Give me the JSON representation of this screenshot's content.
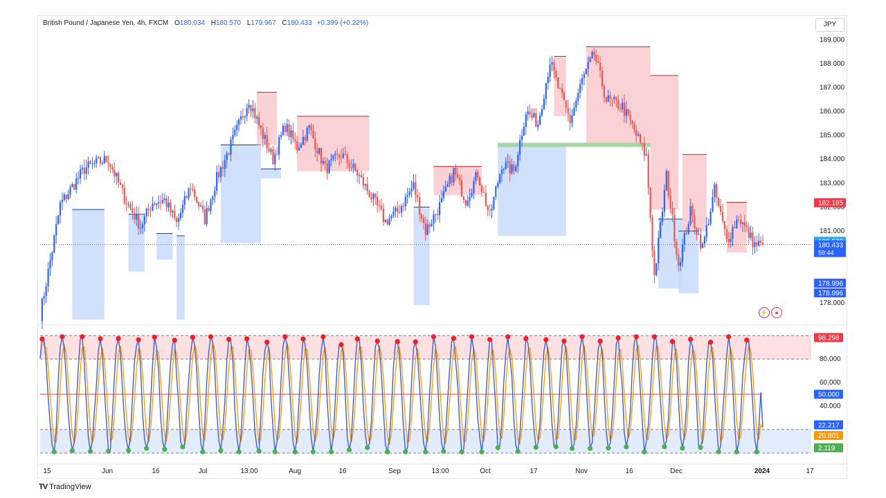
{
  "legend": {
    "symbol": "British Pound / Japanese Yen, 4h, FXCM",
    "open_label": "O",
    "open": "180.034",
    "high_label": "H",
    "high": "180.570",
    "low_label": "L",
    "low": "179.967",
    "close_label": "C",
    "close": "180.433",
    "change": "+0.399 (+0.22%)"
  },
  "currency_button": "JPY",
  "branding": "TradingView",
  "colors": {
    "bull": "#2962ff",
    "bear": "#ef5350",
    "blue_zone": "#c9dbfb",
    "red_zone": "#f9c9cc",
    "green_band": "#a5d6a7",
    "stoch_k": "#3f5fbf",
    "stoch_d": "#ff9800",
    "dot_high": "#f01d2c",
    "dot_low": "#4caf50",
    "overbought_fill": "#fde0e1",
    "oversold_fill": "#e3ecfd"
  },
  "chart_data": [
    {
      "type": "candlestick",
      "timeframe": "4h",
      "y_axis": {
        "ticks": [
          "178.000",
          "181.000",
          "182.000",
          "183.000",
          "184.000",
          "185.000",
          "186.000",
          "187.000",
          "188.000",
          "189.000"
        ],
        "ylim": [
          177.3,
          189.5
        ]
      },
      "x_axis": {
        "ticks": [
          "15",
          "Jun",
          "16",
          "Jul",
          "13:00",
          "Aug",
          "16",
          "Sep",
          "13:00",
          "Oct",
          "17",
          "Nov",
          "16",
          "Dec",
          "2024",
          "17"
        ]
      },
      "price_labels": [
        {
          "value": "182.185",
          "kind": "red"
        },
        {
          "value": "180.570",
          "kind": "high"
        },
        {
          "value": "180.433",
          "kind": "last",
          "countdown": "59:44"
        },
        {
          "value": "178.996",
          "kind": "blue"
        },
        {
          "value": "178.996",
          "kind": "blue"
        }
      ],
      "last_price": 180.433,
      "anchors": [
        [
          0,
          177.5
        ],
        [
          6,
          180.2
        ],
        [
          10,
          182.1
        ],
        [
          22,
          183.6
        ],
        [
          30,
          183.9
        ],
        [
          34,
          184.0
        ],
        [
          42,
          182.4
        ],
        [
          50,
          181.2
        ],
        [
          56,
          182.2
        ],
        [
          62,
          182.3
        ],
        [
          68,
          181.3
        ],
        [
          75,
          182.9
        ],
        [
          82,
          181.5
        ],
        [
          88,
          183.2
        ],
        [
          96,
          184.8
        ],
        [
          104,
          186.5
        ],
        [
          110,
          185.2
        ],
        [
          116,
          184.0
        ],
        [
          122,
          185.4
        ],
        [
          128,
          184.5
        ],
        [
          134,
          185.3
        ],
        [
          142,
          183.6
        ],
        [
          150,
          184.2
        ],
        [
          158,
          183.4
        ],
        [
          166,
          182.3
        ],
        [
          172,
          181.4
        ],
        [
          178,
          181.8
        ],
        [
          186,
          182.9
        ],
        [
          192,
          181.0
        ],
        [
          200,
          182.2
        ],
        [
          206,
          183.5
        ],
        [
          212,
          182.3
        ],
        [
          218,
          183.4
        ],
        [
          224,
          181.6
        ],
        [
          230,
          183.8
        ],
        [
          236,
          183.5
        ],
        [
          242,
          186.0
        ],
        [
          248,
          185.5
        ],
        [
          254,
          188.1
        ],
        [
          258,
          187.0
        ],
        [
          264,
          185.6
        ],
        [
          270,
          187.3
        ],
        [
          276,
          188.4
        ],
        [
          282,
          186.5
        ],
        [
          290,
          186.2
        ],
        [
          296,
          185.2
        ],
        [
          302,
          184.1
        ],
        [
          306,
          179.1
        ],
        [
          312,
          183.3
        ],
        [
          318,
          179.6
        ],
        [
          324,
          181.8
        ],
        [
          330,
          180.3
        ],
        [
          336,
          182.7
        ],
        [
          342,
          180.6
        ],
        [
          348,
          181.6
        ],
        [
          352,
          181.0
        ],
        [
          356,
          180.43
        ]
      ],
      "zones": [
        {
          "kind": "blue",
          "x0": 16,
          "x1": 32,
          "top": 181.9,
          "bottom": 177.3
        },
        {
          "kind": "blue",
          "x0": 44,
          "x1": 52,
          "top": 181.7,
          "bottom": 179.3
        },
        {
          "kind": "blue",
          "x0": 58,
          "x1": 66,
          "top": 180.9,
          "bottom": 179.8
        },
        {
          "kind": "blue",
          "x0": 68,
          "x1": 72,
          "top": 180.8,
          "bottom": 177.3
        },
        {
          "kind": "blue",
          "x0": 90,
          "x1": 110,
          "top": 184.6,
          "bottom": 180.5
        },
        {
          "kind": "blue",
          "x0": 110,
          "x1": 120,
          "top": 183.6,
          "bottom": 183.2
        },
        {
          "kind": "red",
          "x0": 108,
          "x1": 118,
          "top": 186.8,
          "bottom": 184.6
        },
        {
          "kind": "red",
          "x0": 128,
          "x1": 164,
          "top": 185.8,
          "bottom": 183.5
        },
        {
          "kind": "blue",
          "x0": 186,
          "x1": 194,
          "top": 182.0,
          "bottom": 177.9
        },
        {
          "kind": "red",
          "x0": 196,
          "x1": 220,
          "top": 183.7,
          "bottom": 182.5
        },
        {
          "kind": "blue",
          "x0": 228,
          "x1": 262,
          "top": 184.6,
          "bottom": 180.8
        },
        {
          "kind": "red",
          "x0": 256,
          "x1": 262,
          "top": 188.3,
          "bottom": 185.8
        },
        {
          "kind": "red",
          "x0": 272,
          "x1": 304,
          "top": 188.7,
          "bottom": 184.6
        },
        {
          "kind": "red",
          "x0": 304,
          "x1": 318,
          "top": 187.5,
          "bottom": 181.9
        },
        {
          "kind": "blue",
          "x0": 308,
          "x1": 320,
          "top": 181.5,
          "bottom": 178.6
        },
        {
          "kind": "red",
          "x0": 320,
          "x1": 332,
          "top": 184.2,
          "bottom": 181.0
        },
        {
          "kind": "blue",
          "x0": 318,
          "x1": 328,
          "top": 181.0,
          "bottom": 178.4
        },
        {
          "kind": "red",
          "x0": 342,
          "x1": 352,
          "top": 182.2,
          "bottom": 180.1
        }
      ],
      "green_line": {
        "x0": 228,
        "x1": 304,
        "value": 184.6
      }
    },
    {
      "type": "line",
      "indicator": "stochastic",
      "y_axis": {
        "ticks": [
          "40.000",
          "60.000",
          "80.000"
        ],
        "ylim": [
          0,
          103
        ]
      },
      "levels": {
        "overbought": 80,
        "oversold": 20,
        "middle": 50,
        "top": 100,
        "bottom": 0
      },
      "value_labels": [
        {
          "value": "98.298",
          "kind": "red"
        },
        {
          "value": "50.000",
          "kind": "mid"
        },
        {
          "value": "22.217",
          "kind": "k"
        },
        {
          "value": "20.801",
          "kind": "d"
        },
        {
          "value": "2.119",
          "kind": "green"
        }
      ],
      "series": [
        {
          "values_k_last": 22.217
        },
        {
          "values_d_last": 20.801
        }
      ]
    }
  ]
}
